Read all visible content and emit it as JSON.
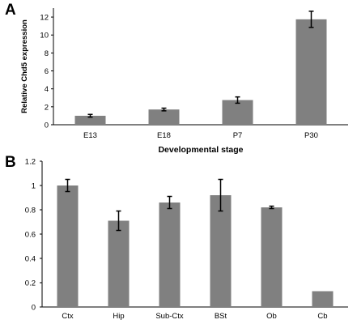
{
  "chart_data": [
    {
      "panel": "A",
      "type": "bar",
      "categories": [
        "E13",
        "E18",
        "P7",
        "P30"
      ],
      "values": [
        1.0,
        1.7,
        2.75,
        11.75
      ],
      "errors": [
        0.15,
        0.15,
        0.35,
        0.9
      ],
      "xlabel": "Developmental stage",
      "ylabel": "Relative Chd5 expression",
      "ylim": [
        0,
        13
      ],
      "yticks": [
        0,
        2,
        4,
        6,
        8,
        10,
        12
      ],
      "bar_color": "#808080",
      "grid": false
    },
    {
      "panel": "B",
      "type": "bar",
      "categories": [
        "Ctx",
        "Hip",
        "Sub-Ctx",
        "BSt",
        "Ob",
        "Cb"
      ],
      "values": [
        1.0,
        0.71,
        0.86,
        0.92,
        0.82,
        0.13
      ],
      "errors": [
        0.05,
        0.08,
        0.05,
        0.13,
        0.01,
        0
      ],
      "xlabel": "",
      "ylabel": "",
      "ylim": [
        0,
        1.2
      ],
      "yticks": [
        0,
        0.2,
        0.4,
        0.6,
        0.8,
        1,
        1.2
      ],
      "bar_color": "#808080",
      "grid": false
    }
  ]
}
